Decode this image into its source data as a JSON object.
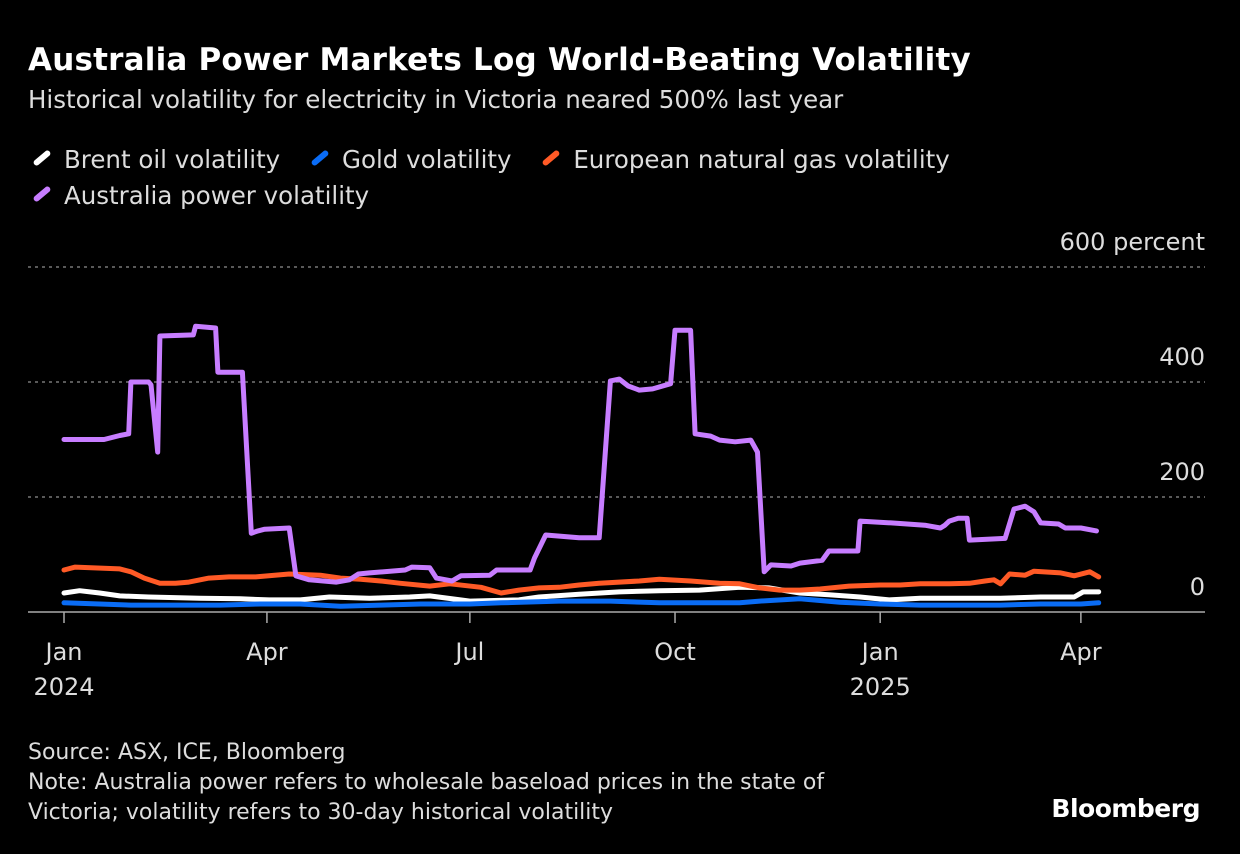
{
  "title": "Australia Power Markets Log World-Beating Volatility",
  "subtitle": "Historical volatility for electricity in Victoria neared 500% last year",
  "source": "Source: ASX, ICE, Bloomberg",
  "note_line1": "Note: Australia power refers to wholesale baseload prices in the state of",
  "note_line2": "Victoria; volatility refers to 30-day historical volatility",
  "logo": "Bloomberg",
  "chart_data": {
    "type": "line",
    "title": "Australia Power Markets Log World-Beating Volatility",
    "ylabel_unit": "percent",
    "ylim": [
      0,
      600
    ],
    "y_ticks": [
      {
        "value": 600,
        "label": "600 percent"
      },
      {
        "value": 400,
        "label": "400"
      },
      {
        "value": 200,
        "label": "200"
      },
      {
        "value": 0,
        "label": "0"
      }
    ],
    "x_ticks": [
      {
        "date": "2024-01-01",
        "label": "Jan",
        "year": "2024"
      },
      {
        "date": "2024-04-01",
        "label": "Apr",
        "year": ""
      },
      {
        "date": "2024-07-01",
        "label": "Jul",
        "year": ""
      },
      {
        "date": "2024-10-01",
        "label": "Oct",
        "year": ""
      },
      {
        "date": "2025-01-01",
        "label": "Jan",
        "year": "2025"
      },
      {
        "date": "2025-04-01",
        "label": "Apr",
        "year": ""
      }
    ],
    "grid": true,
    "legend_position": "top-left",
    "series": [
      {
        "name": "Brent oil volatility",
        "color": "#ffffff",
        "points": [
          [
            "2024-01-01",
            33
          ],
          [
            "2024-01-08",
            37
          ],
          [
            "2024-01-17",
            33
          ],
          [
            "2024-01-26",
            28
          ],
          [
            "2024-02-08",
            26
          ],
          [
            "2024-03-02",
            24
          ],
          [
            "2024-03-20",
            23
          ],
          [
            "2024-04-02",
            21
          ],
          [
            "2024-04-16",
            21
          ],
          [
            "2024-04-29",
            26
          ],
          [
            "2024-05-17",
            24
          ],
          [
            "2024-06-04",
            26
          ],
          [
            "2024-06-13",
            28
          ],
          [
            "2024-07-01",
            19
          ],
          [
            "2024-07-23",
            21
          ],
          [
            "2024-08-01",
            26
          ],
          [
            "2024-08-19",
            31
          ],
          [
            "2024-09-06",
            35
          ],
          [
            "2024-09-24",
            37
          ],
          [
            "2024-10-12",
            38
          ],
          [
            "2024-10-30",
            43
          ],
          [
            "2024-11-12",
            42
          ],
          [
            "2024-11-26",
            33
          ],
          [
            "2024-12-09",
            30
          ],
          [
            "2024-12-23",
            26
          ],
          [
            "2025-01-05",
            21
          ],
          [
            "2025-01-19",
            24
          ],
          [
            "2025-02-06",
            24
          ],
          [
            "2025-02-24",
            24
          ],
          [
            "2025-03-14",
            26
          ],
          [
            "2025-03-29",
            26
          ],
          [
            "2025-04-02",
            35
          ],
          [
            "2025-04-09",
            35
          ]
        ]
      },
      {
        "name": "Gold volatility",
        "color": "#0a6cf5",
        "points": [
          [
            "2024-01-01",
            16
          ],
          [
            "2024-01-17",
            14
          ],
          [
            "2024-01-31",
            12
          ],
          [
            "2024-02-22",
            12
          ],
          [
            "2024-03-11",
            12
          ],
          [
            "2024-03-29",
            14
          ],
          [
            "2024-04-16",
            14
          ],
          [
            "2024-05-04",
            10
          ],
          [
            "2024-05-22",
            12
          ],
          [
            "2024-06-09",
            14
          ],
          [
            "2024-07-01",
            14
          ],
          [
            "2024-07-15",
            16
          ],
          [
            "2024-08-10",
            19
          ],
          [
            "2024-09-02",
            19
          ],
          [
            "2024-09-24",
            16
          ],
          [
            "2024-10-30",
            16
          ],
          [
            "2024-11-08",
            19
          ],
          [
            "2024-11-26",
            23
          ],
          [
            "2024-12-14",
            17
          ],
          [
            "2025-01-01",
            14
          ],
          [
            "2025-01-19",
            12
          ],
          [
            "2025-02-06",
            12
          ],
          [
            "2025-02-24",
            12
          ],
          [
            "2025-03-14",
            14
          ],
          [
            "2025-04-01",
            14
          ],
          [
            "2025-04-09",
            16
          ]
        ]
      },
      {
        "name": "European natural gas volatility",
        "color": "#ff5a26",
        "points": [
          [
            "2024-01-01",
            73
          ],
          [
            "2024-01-06",
            78
          ],
          [
            "2024-01-26",
            75
          ],
          [
            "2024-01-31",
            70
          ],
          [
            "2024-02-06",
            59
          ],
          [
            "2024-02-13",
            50
          ],
          [
            "2024-02-20",
            50
          ],
          [
            "2024-02-26",
            52
          ],
          [
            "2024-03-06",
            59
          ],
          [
            "2024-03-15",
            61
          ],
          [
            "2024-03-27",
            61
          ],
          [
            "2024-04-11",
            66
          ],
          [
            "2024-04-25",
            64
          ],
          [
            "2024-05-04",
            59
          ],
          [
            "2024-05-13",
            57
          ],
          [
            "2024-05-22",
            54
          ],
          [
            "2024-05-31",
            50
          ],
          [
            "2024-06-13",
            45
          ],
          [
            "2024-06-22",
            49
          ],
          [
            "2024-07-06",
            43
          ],
          [
            "2024-07-15",
            33
          ],
          [
            "2024-07-23",
            38
          ],
          [
            "2024-08-01",
            42
          ],
          [
            "2024-08-10",
            43
          ],
          [
            "2024-08-19",
            47
          ],
          [
            "2024-08-28",
            50
          ],
          [
            "2024-09-15",
            54
          ],
          [
            "2024-09-24",
            57
          ],
          [
            "2024-10-08",
            54
          ],
          [
            "2024-10-21",
            50
          ],
          [
            "2024-10-30",
            49
          ],
          [
            "2024-11-08",
            42
          ],
          [
            "2024-11-17",
            38
          ],
          [
            "2024-11-26",
            38
          ],
          [
            "2024-12-05",
            40
          ],
          [
            "2024-12-18",
            45
          ],
          [
            "2025-01-01",
            47
          ],
          [
            "2025-01-10",
            47
          ],
          [
            "2025-01-19",
            49
          ],
          [
            "2025-02-01",
            49
          ],
          [
            "2025-02-10",
            50
          ],
          [
            "2025-02-17",
            54
          ],
          [
            "2025-02-21",
            56
          ],
          [
            "2025-02-24",
            49
          ],
          [
            "2025-02-28",
            66
          ],
          [
            "2025-03-07",
            64
          ],
          [
            "2025-03-11",
            71
          ],
          [
            "2025-03-23",
            68
          ],
          [
            "2025-03-29",
            63
          ],
          [
            "2025-04-05",
            70
          ],
          [
            "2025-04-09",
            61
          ]
        ]
      },
      {
        "name": "Australia power volatility",
        "color": "#c77dff",
        "points": [
          [
            "2024-01-01",
            300
          ],
          [
            "2024-01-19",
            300
          ],
          [
            "2024-01-26",
            307
          ],
          [
            "2024-01-30",
            310
          ],
          [
            "2024-01-31",
            400
          ],
          [
            "2024-02-08",
            400
          ],
          [
            "2024-02-09",
            395
          ],
          [
            "2024-02-12",
            278
          ],
          [
            "2024-02-13",
            480
          ],
          [
            "2024-02-28",
            482
          ],
          [
            "2024-02-29",
            497
          ],
          [
            "2024-03-09",
            494
          ],
          [
            "2024-03-10",
            417
          ],
          [
            "2024-03-21",
            417
          ],
          [
            "2024-03-25",
            137
          ],
          [
            "2024-03-28",
            141
          ],
          [
            "2024-03-31",
            144
          ],
          [
            "2024-04-11",
            146
          ],
          [
            "2024-04-14",
            63
          ],
          [
            "2024-04-20",
            56
          ],
          [
            "2024-05-02",
            52
          ],
          [
            "2024-05-08",
            56
          ],
          [
            "2024-05-12",
            66
          ],
          [
            "2024-05-17",
            68
          ],
          [
            "2024-06-02",
            73
          ],
          [
            "2024-06-05",
            78
          ],
          [
            "2024-06-13",
            77
          ],
          [
            "2024-06-16",
            59
          ],
          [
            "2024-06-23",
            54
          ],
          [
            "2024-06-27",
            63
          ],
          [
            "2024-07-10",
            64
          ],
          [
            "2024-07-13",
            73
          ],
          [
            "2024-07-28",
            73
          ],
          [
            "2024-07-30",
            94
          ],
          [
            "2024-08-04",
            134
          ],
          [
            "2024-08-19",
            129
          ],
          [
            "2024-08-28",
            129
          ],
          [
            "2024-09-02",
            402
          ],
          [
            "2024-09-06",
            405
          ],
          [
            "2024-09-10",
            393
          ],
          [
            "2024-09-15",
            386
          ],
          [
            "2024-09-21",
            388
          ],
          [
            "2024-09-29",
            397
          ],
          [
            "2024-10-01",
            490
          ],
          [
            "2024-10-08",
            490
          ],
          [
            "2024-10-10",
            310
          ],
          [
            "2024-10-17",
            306
          ],
          [
            "2024-10-21",
            299
          ],
          [
            "2024-10-28",
            296
          ],
          [
            "2024-11-04",
            299
          ],
          [
            "2024-11-07",
            278
          ],
          [
            "2024-11-10",
            70
          ],
          [
            "2024-11-13",
            82
          ],
          [
            "2024-11-22",
            80
          ],
          [
            "2024-11-26",
            85
          ],
          [
            "2024-12-06",
            90
          ],
          [
            "2024-12-09",
            106
          ],
          [
            "2024-12-22",
            106
          ],
          [
            "2024-12-23",
            158
          ],
          [
            "2025-01-06",
            155
          ],
          [
            "2025-01-21",
            151
          ],
          [
            "2025-01-28",
            146
          ],
          [
            "2025-01-30",
            151
          ],
          [
            "2025-02-01",
            158
          ],
          [
            "2025-02-05",
            163
          ],
          [
            "2025-02-09",
            163
          ],
          [
            "2025-02-10",
            125
          ],
          [
            "2025-02-26",
            128
          ],
          [
            "2025-03-02",
            179
          ],
          [
            "2025-03-07",
            184
          ],
          [
            "2025-03-11",
            174
          ],
          [
            "2025-03-14",
            155
          ],
          [
            "2025-03-22",
            153
          ],
          [
            "2025-03-25",
            146
          ],
          [
            "2025-04-01",
            146
          ],
          [
            "2025-04-08",
            141
          ]
        ]
      }
    ]
  }
}
